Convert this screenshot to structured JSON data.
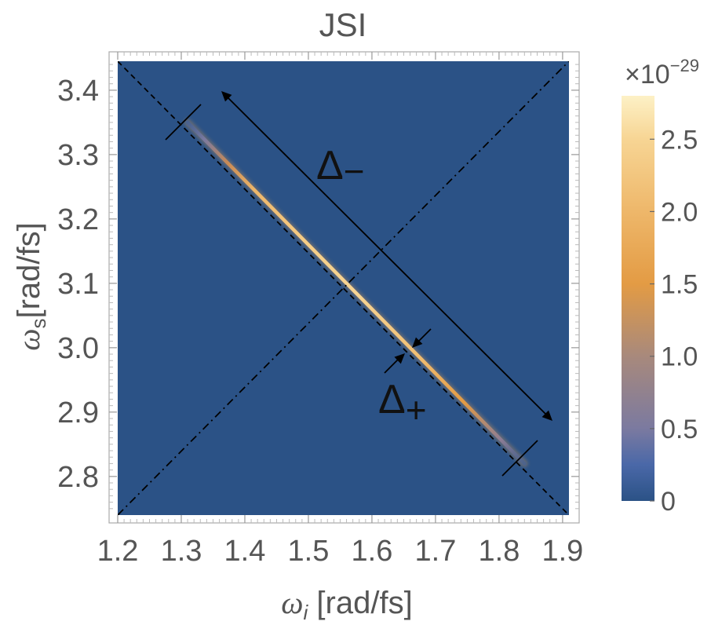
{
  "chart_data": {
    "type": "heatmap",
    "title": "JSI",
    "xlabel": {
      "symbol": "ω",
      "sub": "i",
      "unit": " [rad/fs]"
    },
    "ylabel": {
      "symbol": "ω",
      "sub": "s",
      "unit": "[rad/fs]"
    },
    "xlim": [
      1.2,
      1.91
    ],
    "ylim": [
      2.74,
      3.445
    ],
    "xticks": [
      "1.2",
      "1.3",
      "1.4",
      "1.5",
      "1.6",
      "1.7",
      "1.8",
      "1.9"
    ],
    "yticks": [
      "2.8",
      "2.9",
      "3.0",
      "3.1",
      "3.2",
      "3.3",
      "3.4"
    ],
    "background_color": "#2b5286",
    "colorbar": {
      "scale_label": {
        "prefix": "×10",
        "exponent": "−29"
      },
      "range": [
        0,
        2.8
      ],
      "ticks": [
        "0",
        "0.5",
        "1.0",
        "1.5",
        "2.0",
        "2.5"
      ],
      "stops": [
        {
          "v": 0.0,
          "color": "#2b5286"
        },
        {
          "v": 0.25,
          "color": "#4a68a8"
        },
        {
          "v": 0.5,
          "color": "#7b7aa0"
        },
        {
          "v": 1.0,
          "color": "#a8897c"
        },
        {
          "v": 1.5,
          "color": "#e39b44"
        },
        {
          "v": 2.0,
          "color": "#eeb76a"
        },
        {
          "v": 2.5,
          "color": "#f7d594"
        },
        {
          "v": 2.8,
          "color": "#fdf1c6"
        }
      ]
    },
    "ridge": {
      "x_start": 1.31,
      "x_end": 1.84,
      "sum": 4.66
    },
    "reference_lines": [
      {
        "style": "dashed",
        "from": [
          1.2,
          3.445
        ],
        "to": [
          1.91,
          2.74
        ]
      },
      {
        "style": "dashdot",
        "from": [
          1.2,
          2.74
        ],
        "to": [
          1.91,
          3.445
        ]
      }
    ],
    "annotations": {
      "delta_minus": {
        "base": "Δ",
        "sub": "−"
      },
      "delta_plus": {
        "base": "Δ",
        "sub": "+"
      }
    }
  }
}
